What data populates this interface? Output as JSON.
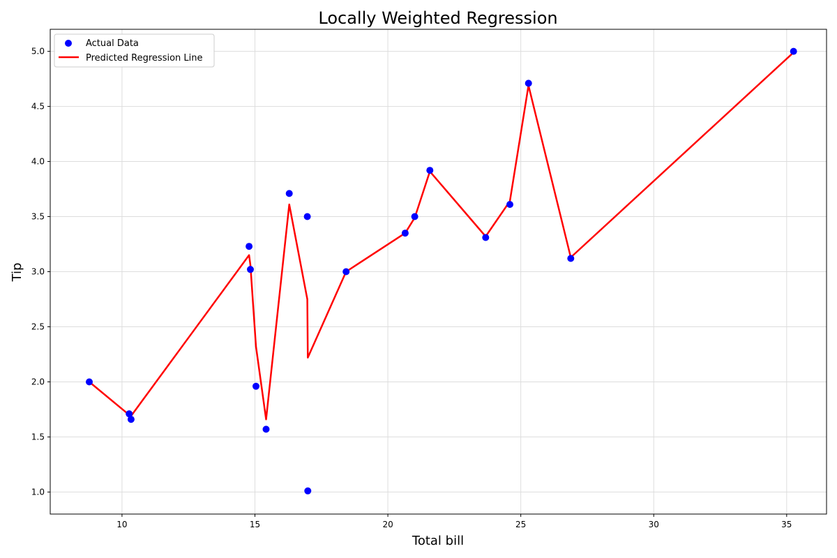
{
  "chart_data": {
    "type": "scatter",
    "title": "Locally Weighted Regression",
    "xlabel": "Total bill",
    "ylabel": "Tip",
    "xlim": [
      7.3,
      36.5
    ],
    "ylim": [
      0.8,
      5.2
    ],
    "xticks": [
      10,
      15,
      20,
      25,
      30,
      35
    ],
    "yticks": [
      1.0,
      1.5,
      2.0,
      2.5,
      3.0,
      3.5,
      4.0,
      4.5,
      5.0
    ],
    "grid": true,
    "legend_position": "upper-left",
    "series": [
      {
        "name": "Actual Data",
        "kind": "scatter",
        "color": "#0000ff",
        "points": [
          [
            8.77,
            2.0
          ],
          [
            10.27,
            1.71
          ],
          [
            10.34,
            1.66
          ],
          [
            14.78,
            3.23
          ],
          [
            14.83,
            3.02
          ],
          [
            15.04,
            1.96
          ],
          [
            15.42,
            1.57
          ],
          [
            16.29,
            3.71
          ],
          [
            16.97,
            3.5
          ],
          [
            16.99,
            1.01
          ],
          [
            18.43,
            3.0
          ],
          [
            20.65,
            3.35
          ],
          [
            21.01,
            3.5
          ],
          [
            21.58,
            3.92
          ],
          [
            23.68,
            3.31
          ],
          [
            24.59,
            3.61
          ],
          [
            25.29,
            4.71
          ],
          [
            26.88,
            3.12
          ],
          [
            35.26,
            5.0
          ]
        ]
      },
      {
        "name": "Predicted Regression Line",
        "kind": "line",
        "color": "#ff0000",
        "points": [
          [
            8.77,
            2.0
          ],
          [
            10.27,
            1.7
          ],
          [
            10.34,
            1.69
          ],
          [
            14.78,
            3.15
          ],
          [
            14.83,
            3.06
          ],
          [
            15.04,
            2.32
          ],
          [
            15.42,
            1.66
          ],
          [
            16.29,
            3.61
          ],
          [
            16.97,
            2.75
          ],
          [
            16.99,
            2.22
          ],
          [
            18.43,
            3.0
          ],
          [
            20.65,
            3.35
          ],
          [
            21.01,
            3.49
          ],
          [
            21.58,
            3.91
          ],
          [
            23.68,
            3.32
          ],
          [
            24.59,
            3.64
          ],
          [
            25.29,
            4.69
          ],
          [
            26.88,
            3.13
          ],
          [
            35.26,
            4.99
          ]
        ]
      }
    ]
  }
}
